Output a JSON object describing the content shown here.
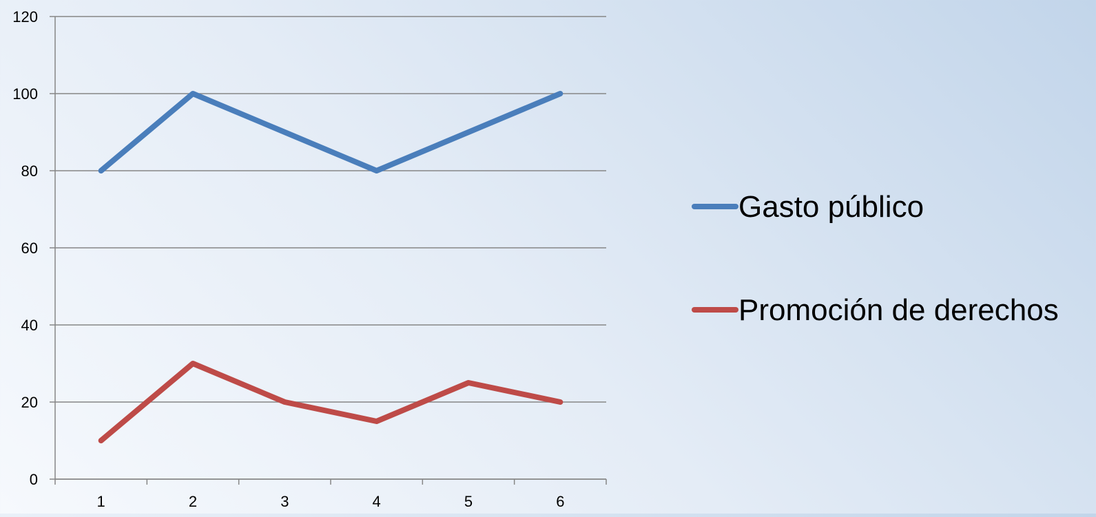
{
  "chart_data": {
    "type": "line",
    "title": "",
    "xlabel": "",
    "ylabel": "",
    "categories": [
      "1",
      "2",
      "3",
      "4",
      "5",
      "6"
    ],
    "ylim": [
      0,
      120
    ],
    "yticks": [
      0,
      20,
      40,
      60,
      80,
      100,
      120
    ],
    "grid": true,
    "legend_position": "right",
    "series": [
      {
        "name": "Gasto público",
        "color": "#4a7ebb",
        "values": [
          80,
          100,
          90,
          80,
          90,
          100
        ]
      },
      {
        "name": "Promoción de derechos",
        "color": "#be4b48",
        "values": [
          10,
          30,
          20,
          15,
          25,
          20
        ]
      }
    ]
  },
  "colors": {
    "gridline": "#868686",
    "axis": "#868686"
  }
}
